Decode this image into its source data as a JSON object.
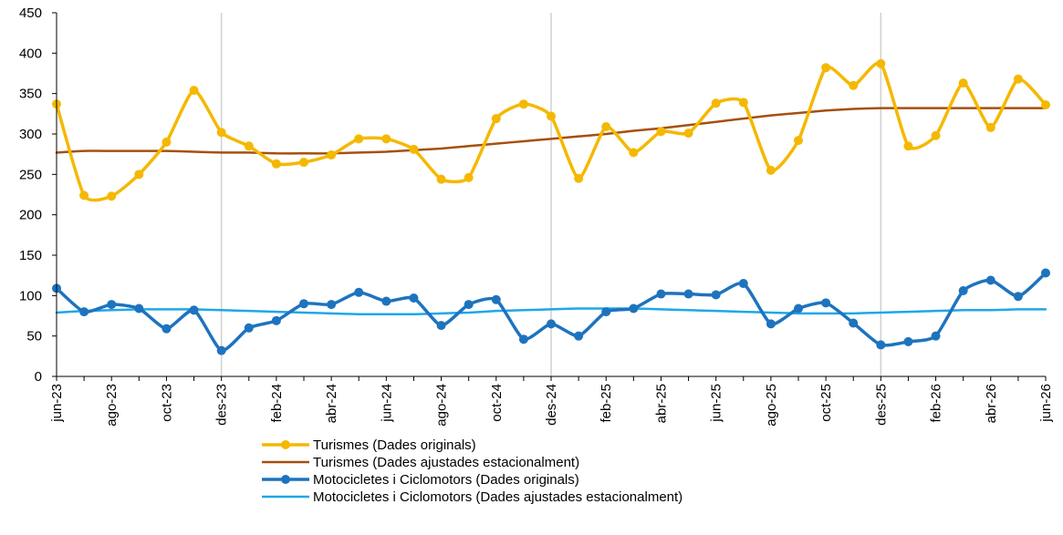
{
  "chart_data": {
    "type": "line",
    "title": "",
    "xlabel": "",
    "ylabel": "",
    "ylim": [
      0,
      450
    ],
    "yticks": [
      0,
      50,
      100,
      150,
      200,
      250,
      300,
      350,
      400,
      450
    ],
    "x": [
      "jun-23",
      "jul-23",
      "ago-23",
      "set-23",
      "oct-23",
      "nov-23",
      "des-23",
      "gen-24",
      "feb-24",
      "mar-24",
      "abr-24",
      "mai-24",
      "jun-24",
      "jul-24",
      "ago-24",
      "set-24",
      "oct-24",
      "nov-24",
      "des-24",
      "gen-25",
      "feb-25",
      "mar-25",
      "abr-25",
      "mai-25",
      "jun-25",
      "jul-25",
      "ago-25",
      "set-25",
      "oct-25",
      "nov-25",
      "des-25",
      "gen-26",
      "feb-26",
      "mar-26",
      "abr-26",
      "mai-26",
      "jun-26"
    ],
    "xtick_labels": [
      "jun-23",
      "",
      "ago-23",
      "",
      "oct-23",
      "",
      "des-23",
      "",
      "feb-24",
      "",
      "abr-24",
      "",
      "jun-24",
      "",
      "ago-24",
      "",
      "oct-24",
      "",
      "des-24",
      "",
      "feb-25",
      "",
      "abr-25",
      "",
      "jun-25",
      "",
      "ago-25",
      "",
      "oct-25",
      "",
      "des-25",
      "",
      "feb-26",
      "",
      "abr-26",
      "",
      "jun-26"
    ],
    "vertical_reference_lines": [
      "des-23",
      "des-24",
      "des-25"
    ],
    "grid": false,
    "legend_position": "bottom",
    "series": [
      {
        "name": "Turismes (Dades originals)",
        "color": "#F5B800",
        "markers": true,
        "values": [
          337,
          224,
          223,
          250,
          290,
          354,
          302,
          285,
          263,
          265,
          274,
          294,
          294,
          281,
          244,
          246,
          319,
          337,
          322,
          245,
          309,
          277,
          303,
          301,
          338,
          339,
          255,
          292,
          382,
          360,
          387,
          285,
          298,
          363,
          308,
          368,
          336
        ]
      },
      {
        "name": "Turismes (Dades ajustades estacionalment)",
        "color": "#A5500F",
        "markers": false,
        "values": [
          277,
          279,
          279,
          279,
          279,
          278,
          277,
          277,
          276,
          276,
          276,
          277,
          278,
          280,
          282,
          285,
          288,
          291,
          294,
          297,
          300,
          304,
          307,
          311,
          315,
          319,
          323,
          326,
          329,
          331,
          332,
          332,
          332,
          332,
          332,
          332,
          332
        ]
      },
      {
        "name": "Motocicletes i Ciclomotors (Dades originals)",
        "color": "#1E73BE",
        "markers": true,
        "values": [
          109,
          80,
          89,
          84,
          59,
          82,
          32,
          60,
          69,
          90,
          89,
          104,
          93,
          97,
          63,
          89,
          95,
          46,
          65,
          50,
          80,
          84,
          102,
          102,
          101,
          115,
          65,
          84,
          91,
          66,
          39,
          43,
          50,
          106,
          119,
          99,
          128
        ]
      },
      {
        "name": "Motocicletes i Ciclomotors (Dades ajustades estacionalment)",
        "color": "#1FA7E8",
        "markers": false,
        "values": [
          79,
          81,
          82,
          83,
          83,
          83,
          82,
          81,
          80,
          79,
          78,
          77,
          77,
          77,
          78,
          79,
          81,
          82,
          83,
          84,
          84,
          84,
          83,
          82,
          81,
          80,
          79,
          78,
          78,
          78,
          79,
          80,
          81,
          82,
          82,
          83,
          83
        ]
      }
    ]
  }
}
